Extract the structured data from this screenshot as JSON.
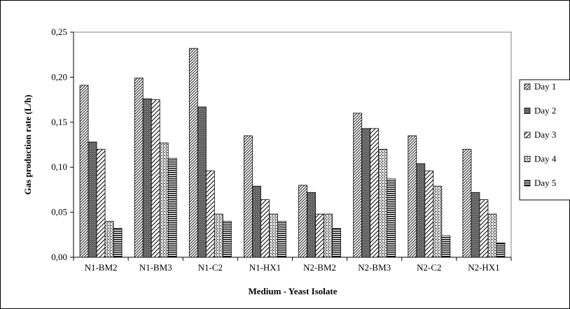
{
  "chart_data": {
    "type": "bar",
    "xlabel": "Medium - Yeast Isolate",
    "ylabel": "Gas production rate (L/h)",
    "ylim": [
      0,
      0.25
    ],
    "yticks": [
      "0,00",
      "0,05",
      "0,10",
      "0,15",
      "0,20",
      "0,25"
    ],
    "ytick_values": [
      0,
      0.05,
      0.1,
      0.15,
      0.2,
      0.25
    ],
    "categories": [
      "N1-BM2",
      "N1-BM3",
      "N1-C2",
      "N1-HX1",
      "N2-BM2",
      "N2-BM3",
      "N2-C2",
      "N2-HX1"
    ],
    "series": [
      {
        "name": "Day 1",
        "pattern": "diag-light",
        "values": [
          0.191,
          0.199,
          0.232,
          0.135,
          0.08,
          0.16,
          0.135,
          0.12
        ]
      },
      {
        "name": "Day 2",
        "pattern": "dense-dark",
        "values": [
          0.128,
          0.176,
          0.167,
          0.079,
          0.072,
          0.143,
          0.104,
          0.072
        ]
      },
      {
        "name": "Day 3",
        "pattern": "diag-wide",
        "values": [
          0.12,
          0.175,
          0.096,
          0.064,
          0.048,
          0.143,
          0.096,
          0.064
        ]
      },
      {
        "name": "Day 4",
        "pattern": "dotted",
        "values": [
          0.04,
          0.127,
          0.048,
          0.048,
          0.048,
          0.12,
          0.079,
          0.048
        ]
      },
      {
        "name": "Day 5",
        "pattern": "horizontal",
        "values": [
          0.032,
          0.11,
          0.04,
          0.04,
          0.032,
          0.087,
          0.024,
          0.016
        ]
      }
    ],
    "grid": false,
    "legend_position": "right"
  }
}
